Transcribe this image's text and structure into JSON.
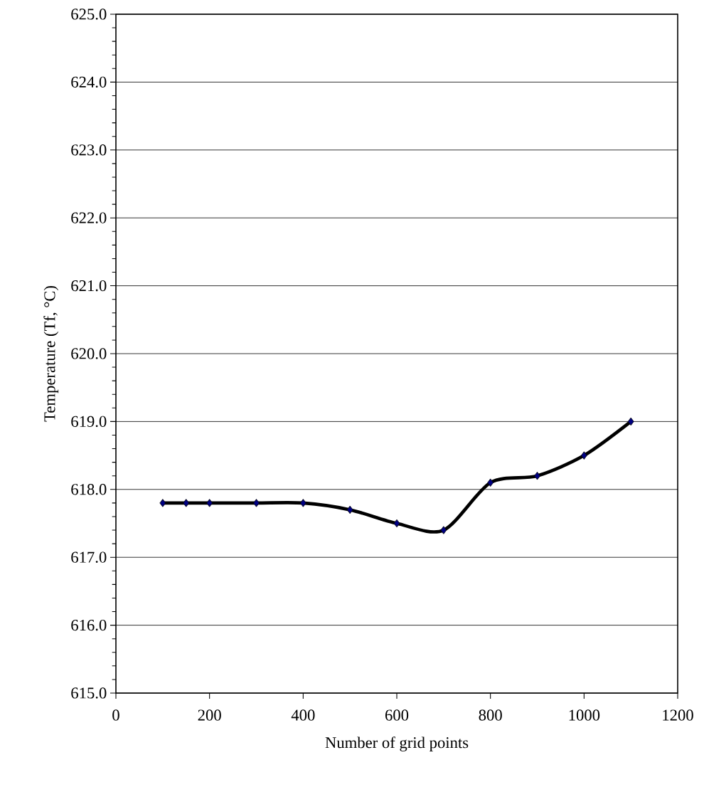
{
  "chart_data": {
    "type": "line",
    "xlabel": "Number of grid points",
    "ylabel": "Temperature (Tf, °C)",
    "x": [
      100,
      150,
      200,
      300,
      400,
      500,
      600,
      700,
      800,
      900,
      1000,
      1100
    ],
    "series": [
      {
        "color": "#000000",
        "values": [
          617.8,
          617.8,
          617.8,
          617.8,
          617.8,
          617.7,
          617.5,
          617.4,
          618.1,
          618.2,
          618.5,
          619.0
        ]
      }
    ],
    "xlim": [
      0,
      1200
    ],
    "xticks": [
      0,
      200,
      400,
      600,
      800,
      1000,
      1200
    ],
    "ylim": [
      615,
      625
    ],
    "yticks": [
      {
        "value": 615,
        "label": "615.0"
      },
      {
        "value": 616,
        "label": "616.0"
      },
      {
        "value": 617,
        "label": "617.0"
      },
      {
        "value": 618,
        "label": "618.0"
      },
      {
        "value": 619,
        "label": "619.0"
      },
      {
        "value": 620,
        "label": "620.0"
      },
      {
        "value": 621,
        "label": "621.0"
      },
      {
        "value": 622,
        "label": "622.0"
      },
      {
        "value": 623,
        "label": "623.0"
      },
      {
        "value": 624,
        "label": "624.0"
      },
      {
        "value": 625,
        "label": "625.0"
      }
    ],
    "grid": "y",
    "marker": "diamond",
    "line_style": "solid"
  }
}
